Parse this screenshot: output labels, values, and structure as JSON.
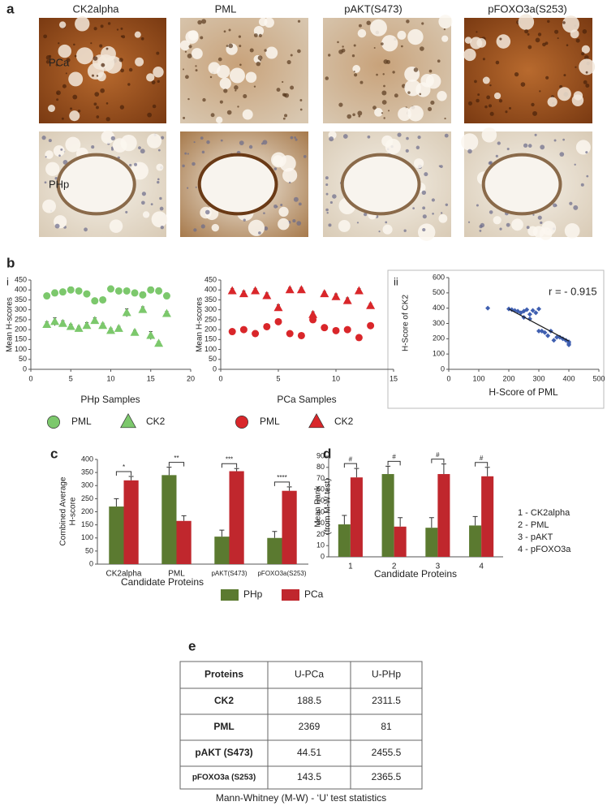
{
  "figure": {
    "labels": [
      "a",
      "b",
      "i",
      "ii",
      "c",
      "d",
      "e"
    ],
    "columns": [
      "CK2alpha",
      "PML",
      "pAKT(S473)",
      "pFOXO3a(S253)"
    ],
    "rows": [
      "PCa",
      "PHp"
    ]
  },
  "chart_data": [
    {
      "type": "scatter",
      "xlabel": "PHp Samples",
      "ylabel": "Mean H-scores",
      "x": [
        2,
        3,
        4,
        5,
        6,
        7,
        8,
        9,
        10,
        11,
        12,
        13,
        14,
        15,
        16,
        17
      ],
      "series": [
        {
          "name": "PML",
          "marker": "circle",
          "color": "#7cc86c",
          "values": [
            370,
            385,
            390,
            400,
            395,
            380,
            345,
            350,
            405,
            395,
            395,
            385,
            375,
            400,
            395,
            370
          ],
          "errors": [
            12,
            15,
            12,
            15,
            12,
            12,
            10,
            10,
            15,
            12,
            12,
            12,
            15,
            15,
            15,
            15
          ]
        },
        {
          "name": "CK2",
          "marker": "triangle",
          "color": "#7cc86c",
          "values": [
            225,
            240,
            230,
            215,
            205,
            220,
            245,
            220,
            195,
            205,
            285,
            185,
            300,
            170,
            130,
            280
          ],
          "errors": [
            15,
            20,
            15,
            12,
            12,
            15,
            15,
            12,
            12,
            12,
            20,
            12,
            15,
            20,
            10,
            12
          ]
        }
      ],
      "xlim": [
        0,
        20
      ],
      "xticks": [
        0,
        5,
        10,
        15,
        20
      ],
      "ylim": [
        0,
        450
      ],
      "yticks": [
        0,
        50,
        100,
        150,
        200,
        250,
        300,
        350,
        400,
        450
      ]
    },
    {
      "type": "scatter",
      "xlabel": "PCa Samples",
      "ylabel": "Mean H-scores",
      "x": [
        1,
        2,
        3,
        4,
        5,
        6,
        7,
        8,
        9,
        10,
        11,
        12,
        13
      ],
      "series": [
        {
          "name": "PML",
          "marker": "circle",
          "color": "#d9262a",
          "values": [
            190,
            200,
            180,
            215,
            240,
            180,
            170,
            250,
            210,
            195,
            200,
            160,
            220
          ],
          "errors": [
            10,
            12,
            15,
            12,
            12,
            12,
            10,
            15,
            12,
            10,
            12,
            12,
            12
          ]
        },
        {
          "name": "CK2",
          "marker": "triangle",
          "color": "#d9262a",
          "values": [
            395,
            380,
            395,
            370,
            310,
            400,
            400,
            275,
            380,
            365,
            345,
            395,
            320
          ],
          "errors": [
            12,
            15,
            12,
            15,
            15,
            12,
            12,
            15,
            12,
            15,
            15,
            12,
            12
          ]
        }
      ],
      "xlim": [
        0,
        15
      ],
      "xticks": [
        0,
        5,
        10,
        15
      ],
      "ylim": [
        0,
        450
      ],
      "yticks": [
        0,
        50,
        100,
        150,
        200,
        250,
        300,
        350,
        400,
        450
      ]
    },
    {
      "type": "scatter",
      "xlabel": "H-Score of PML",
      "ylabel": "H-Score of CK2",
      "annotation": "r = - 0.915",
      "x": [
        130,
        200,
        210,
        220,
        230,
        240,
        250,
        260,
        270,
        280,
        290,
        300,
        250,
        270,
        300,
        310,
        320,
        340,
        350,
        360,
        370,
        380,
        390,
        400,
        400,
        400,
        330
      ],
      "series": [
        {
          "marker": "diamond",
          "color": "#3f5fb0",
          "values": [
            400,
            395,
            390,
            385,
            380,
            370,
            380,
            390,
            360,
            385,
            370,
            395,
            340,
            330,
            250,
            250,
            240,
            250,
            190,
            210,
            210,
            200,
            190,
            180,
            170,
            160,
            220
          ]
        }
      ],
      "trendline": {
        "x": [
          200,
          400
        ],
        "y": [
          395,
          185
        ],
        "color": "#1a1a1a"
      },
      "xlim": [
        0,
        500
      ],
      "xticks": [
        0,
        100,
        200,
        300,
        400,
        500
      ],
      "ylim": [
        0,
        600
      ],
      "yticks": [
        0,
        100,
        200,
        300,
        400,
        500,
        600
      ]
    },
    {
      "type": "bar",
      "xlabel": "Candidate Proteins",
      "ylabel": [
        "Combined Average",
        "H-score"
      ],
      "categories": [
        "CK2alpha",
        "PML",
        "pAKT(S473)",
        "pFOXO3a(S253)"
      ],
      "series": [
        {
          "name": "PHp",
          "color": "#5b7a30",
          "values": [
            220,
            340,
            105,
            100
          ],
          "errors": [
            30,
            30,
            25,
            25
          ]
        },
        {
          "name": "PCa",
          "color": "#c0272d",
          "values": [
            320,
            165,
            355,
            280
          ],
          "errors": [
            15,
            20,
            10,
            15
          ]
        }
      ],
      "significance": [
        "*",
        "**",
        "***",
        "****"
      ],
      "ylim": [
        0,
        400
      ],
      "yticks": [
        0,
        50,
        100,
        150,
        200,
        250,
        300,
        350,
        400
      ]
    },
    {
      "type": "bar",
      "xlabel": "Candidate Proteins",
      "ylabel": [
        "Mean Rank",
        "(from M-W test)"
      ],
      "categories": [
        "1",
        "2",
        "3",
        "4"
      ],
      "series": [
        {
          "color": "#5b7a30",
          "values": [
            29,
            74,
            26,
            28
          ],
          "errors": [
            8,
            7,
            9,
            8
          ]
        },
        {
          "color": "#c0272d",
          "values": [
            71,
            27,
            74,
            72
          ],
          "errors": [
            8,
            8,
            9,
            8
          ]
        }
      ],
      "significance": [
        "#",
        "#",
        "#",
        "#"
      ],
      "notes": [
        "1 - CK2alpha",
        "2 - PML",
        "3 - pAKT",
        "4 - pFOXO3a"
      ],
      "ylim": [
        0,
        90
      ],
      "yticks": [
        0,
        10,
        20,
        30,
        40,
        50,
        60,
        70,
        80,
        90
      ]
    }
  ],
  "table": {
    "header": [
      "Proteins",
      "U-PCa",
      "U-PHp"
    ],
    "rows": [
      [
        "CK2",
        188.5,
        2311.5
      ],
      [
        "PML",
        2369,
        81
      ],
      [
        "pAKT (S473)",
        44.51,
        2455.5
      ],
      [
        "pFOXO3a (S253)",
        143.5,
        2365.5
      ]
    ],
    "caption": "Mann-Whitney (M-W) - ‘U’ test statistics"
  }
}
